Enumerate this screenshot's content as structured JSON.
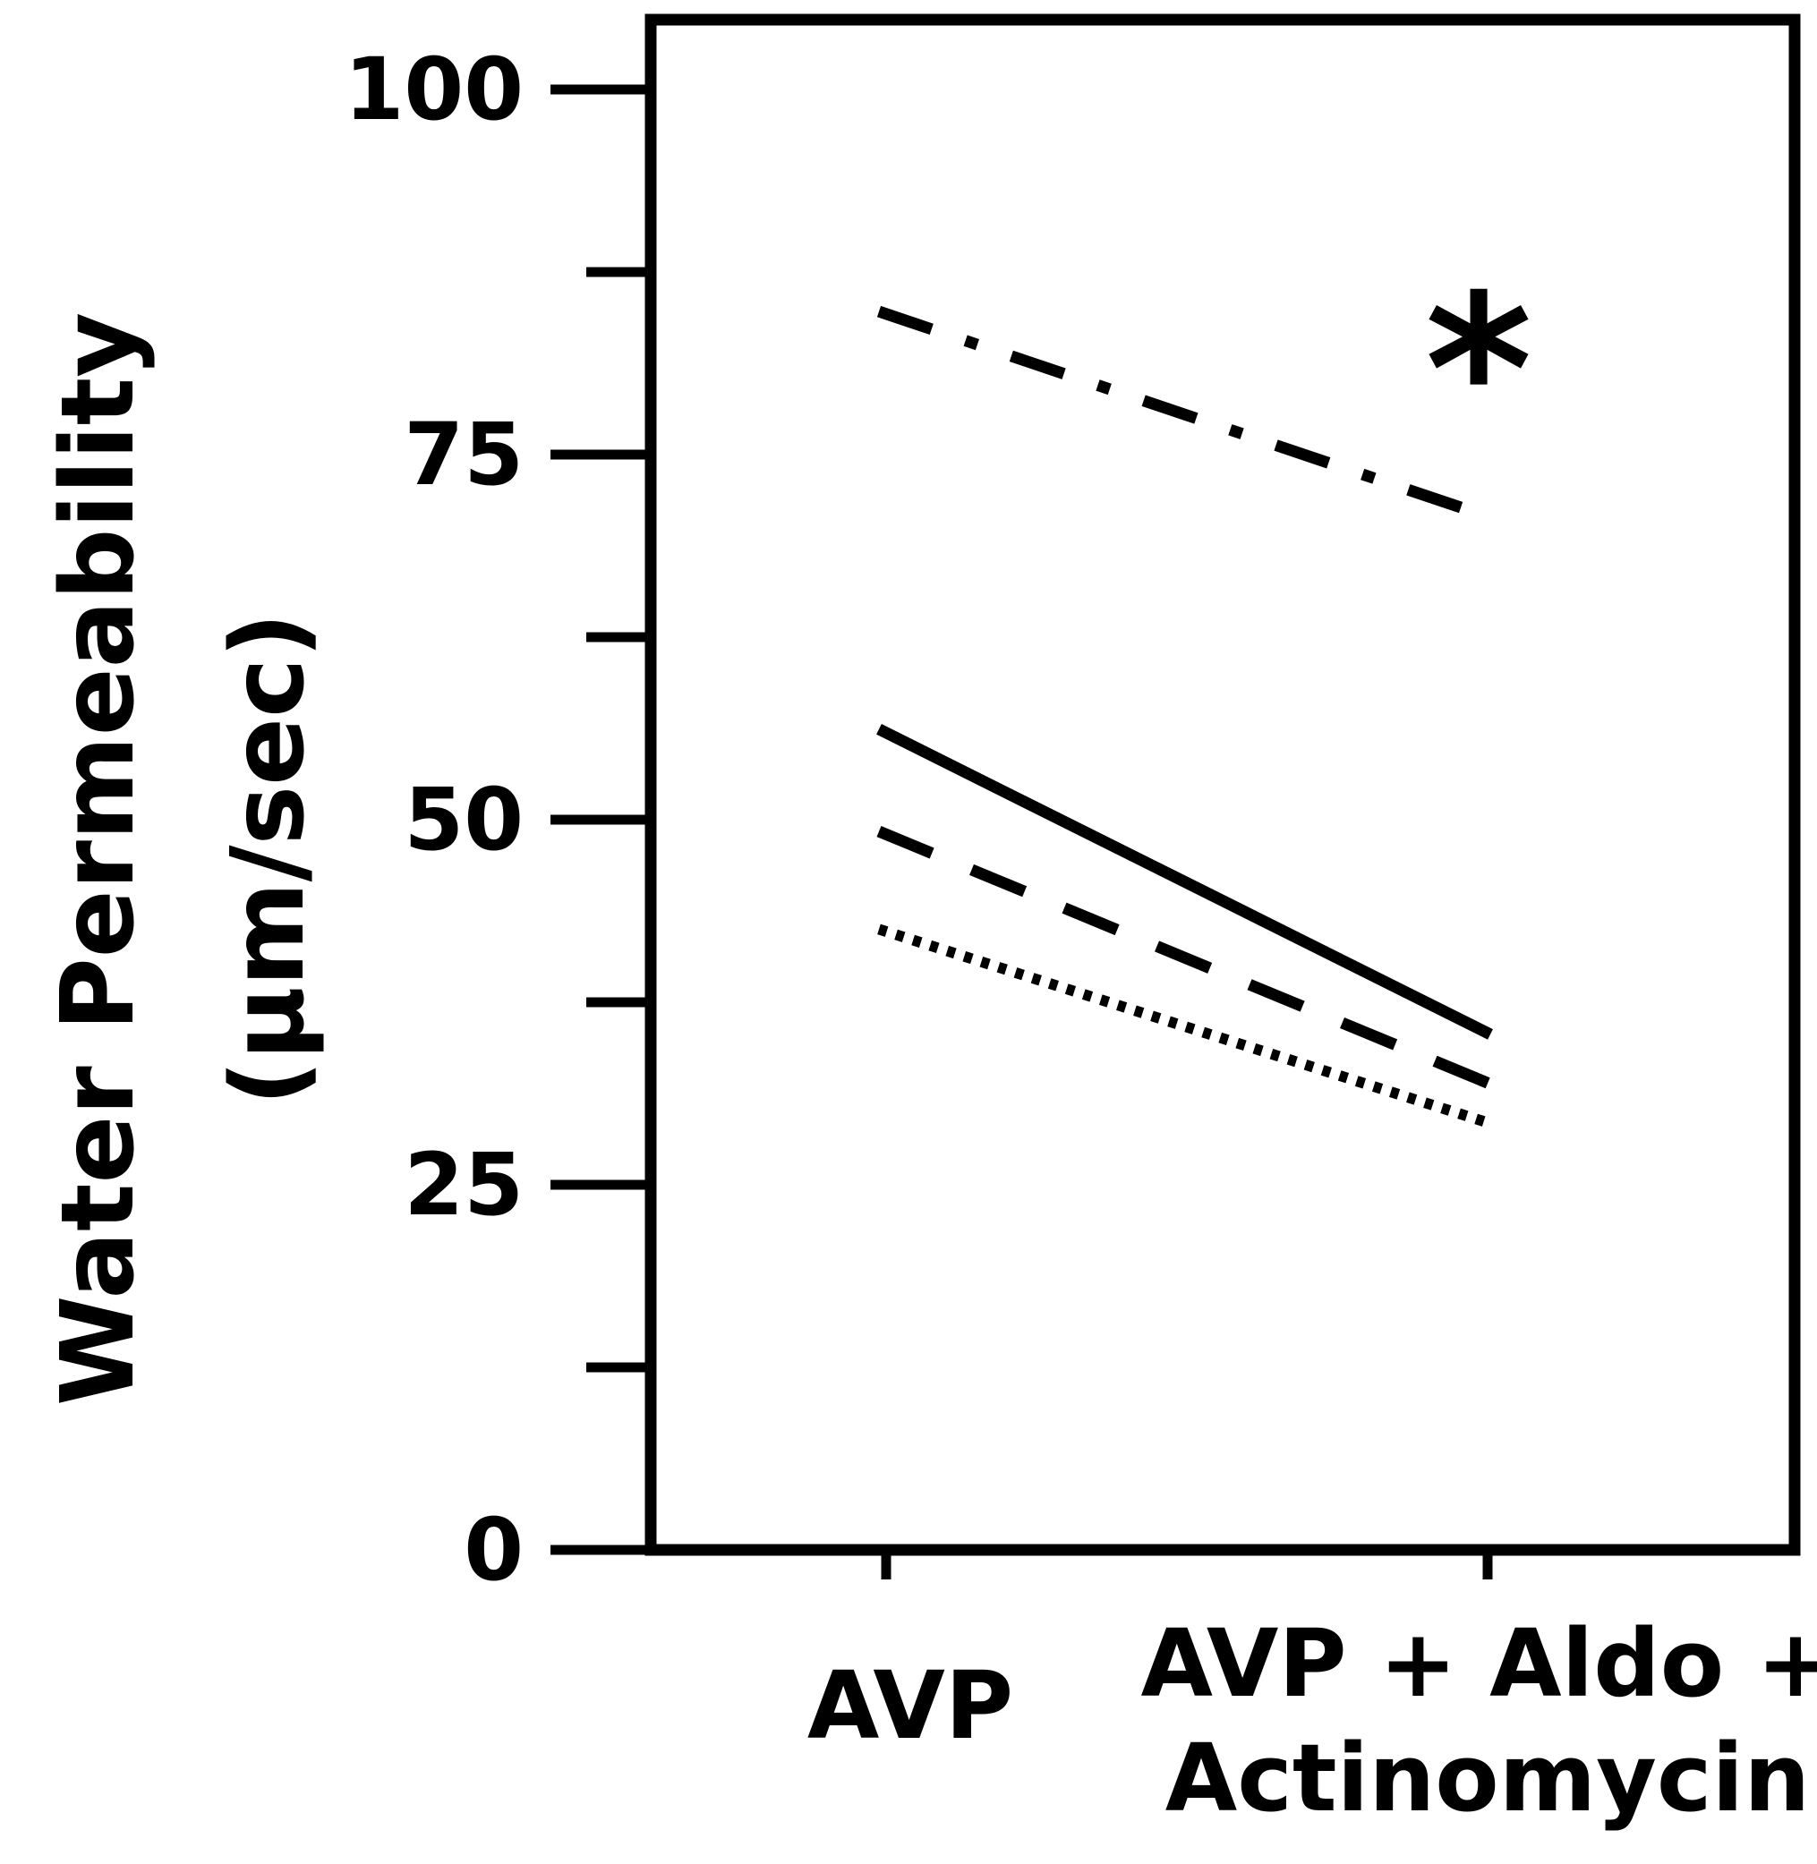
{
  "chart_data": {
    "type": "line",
    "title": "",
    "xlabel": "",
    "ylabel_line1": "Water Permeability",
    "ylabel_line2": "(µm/sec)",
    "categories": [
      "AVP",
      "AVP + Aldo +\nActinomycin"
    ],
    "category_lines": [
      [
        "AVP"
      ],
      [
        "AVP + Aldo +",
        "Actinomycin"
      ]
    ],
    "ylim": [
      0,
      100
    ],
    "major_ticks": [
      0,
      25,
      50,
      75,
      100
    ],
    "tick_labels": [
      "0",
      "25",
      "50",
      "75",
      "100"
    ],
    "minor_ticks": [
      12.5,
      37.5,
      62.5,
      87.5
    ],
    "grid": false,
    "legend": "none",
    "series": [
      {
        "style": "dash-dot",
        "values": [
          84.8,
          70.7
        ]
      },
      {
        "style": "solid",
        "values": [
          56.2,
          35.3
        ]
      },
      {
        "style": "dashed",
        "values": [
          49.2,
          31.9
        ]
      },
      {
        "style": "dotted",
        "values": [
          42.5,
          29.2
        ]
      }
    ],
    "annotations": [
      {
        "text": "*",
        "category_index": 1,
        "y": 86
      }
    ],
    "colors": {
      "line": "#000000",
      "background": "#ffffff"
    }
  }
}
